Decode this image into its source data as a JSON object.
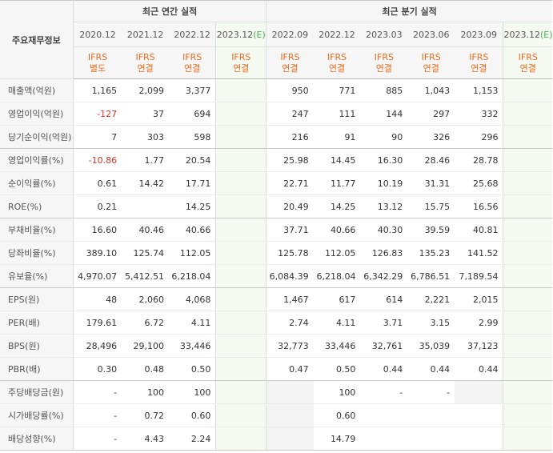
{
  "corner_label": "주요재무정보",
  "groups": {
    "annual": "최근 연간 실적",
    "quarterly": "최근 분기 실적"
  },
  "periods": [
    {
      "label": "2020.12",
      "ifrs": "IFRS",
      "basis": "별도"
    },
    {
      "label": "2021.12",
      "ifrs": "IFRS",
      "basis": "연결"
    },
    {
      "label": "2022.12",
      "ifrs": "IFRS",
      "basis": "연결"
    },
    {
      "label": "2023.12",
      "est_mark": "(E)",
      "ifrs": "IFRS",
      "basis": "연결"
    },
    {
      "label": "2022.09",
      "ifrs": "IFRS",
      "basis": "연결"
    },
    {
      "label": "2022.12",
      "ifrs": "IFRS",
      "basis": "연결"
    },
    {
      "label": "2023.03",
      "ifrs": "IFRS",
      "basis": "연결"
    },
    {
      "label": "2023.06",
      "ifrs": "IFRS",
      "basis": "연결"
    },
    {
      "label": "2023.09",
      "ifrs": "IFRS",
      "basis": "연결"
    },
    {
      "label": "2023.12",
      "est_mark": "(E)",
      "ifrs": "IFRS",
      "basis": "연결"
    }
  ],
  "rows": [
    {
      "label": "매출액(억원)",
      "values": [
        "1,165",
        "2,099",
        "3,377",
        "",
        "950",
        "771",
        "885",
        "1,043",
        "1,153",
        ""
      ]
    },
    {
      "label": "영업이익(억원)",
      "values": [
        "-127",
        "37",
        "694",
        "",
        "247",
        "111",
        "144",
        "297",
        "332",
        ""
      ]
    },
    {
      "label": "당기순이익(억원)",
      "values": [
        "7",
        "303",
        "598",
        "",
        "216",
        "91",
        "90",
        "326",
        "296",
        ""
      ]
    },
    {
      "label": "영업이익률(%)",
      "values": [
        "-10.86",
        "1.77",
        "20.54",
        "",
        "25.98",
        "14.45",
        "16.30",
        "28.46",
        "28.78",
        ""
      ]
    },
    {
      "label": "순이익률(%)",
      "values": [
        "0.61",
        "14.42",
        "17.71",
        "",
        "22.71",
        "11.77",
        "10.19",
        "31.31",
        "25.68",
        ""
      ]
    },
    {
      "label": "ROE(%)",
      "values": [
        "0.21",
        "",
        "14.25",
        "",
        "20.49",
        "14.25",
        "13.12",
        "15.75",
        "16.56",
        ""
      ]
    },
    {
      "label": "부채비율(%)",
      "values": [
        "16.60",
        "40.46",
        "40.66",
        "",
        "37.71",
        "40.66",
        "40.30",
        "39.59",
        "40.81",
        ""
      ]
    },
    {
      "label": "당좌비율(%)",
      "values": [
        "389.10",
        "125.74",
        "112.05",
        "",
        "125.78",
        "112.05",
        "126.83",
        "135.23",
        "141.52",
        ""
      ]
    },
    {
      "label": "유보율(%)",
      "values": [
        "4,970.07",
        "5,412.51",
        "6,218.04",
        "",
        "6,084.39",
        "6,218.04",
        "6,342.29",
        "6,786.51",
        "7,189.54",
        ""
      ]
    },
    {
      "label": "EPS(원)",
      "values": [
        "48",
        "2,060",
        "4,068",
        "",
        "1,467",
        "617",
        "614",
        "2,221",
        "2,015",
        ""
      ]
    },
    {
      "label": "PER(배)",
      "values": [
        "179.61",
        "6.72",
        "4.11",
        "",
        "2.74",
        "4.11",
        "3.71",
        "3.15",
        "2.99",
        ""
      ]
    },
    {
      "label": "BPS(원)",
      "values": [
        "28,496",
        "29,100",
        "33,446",
        "",
        "32,773",
        "33,446",
        "32,761",
        "35,039",
        "37,123",
        ""
      ]
    },
    {
      "label": "PBR(배)",
      "values": [
        "0.30",
        "0.48",
        "0.50",
        "",
        "0.47",
        "0.50",
        "0.44",
        "0.44",
        "0.44",
        ""
      ]
    },
    {
      "label": "주당배당금(원)",
      "values": [
        "-",
        "100",
        "100",
        "",
        "",
        "100",
        "-",
        "-",
        "",
        ""
      ]
    },
    {
      "label": "시가배당률(%)",
      "values": [
        "-",
        "0.72",
        "0.60",
        "",
        "",
        "0.60",
        "",
        "",
        "",
        ""
      ]
    },
    {
      "label": "배당성향(%)",
      "values": [
        "-",
        "4.43",
        "2.24",
        "",
        "",
        "14.79",
        "",
        "",
        "",
        ""
      ]
    }
  ],
  "colors": {
    "negative": "#d9302a",
    "ifrs_label": "#ee6a1c",
    "estimate_bg": "#f4f9f2",
    "header_bg": "#f6f6f6"
  }
}
